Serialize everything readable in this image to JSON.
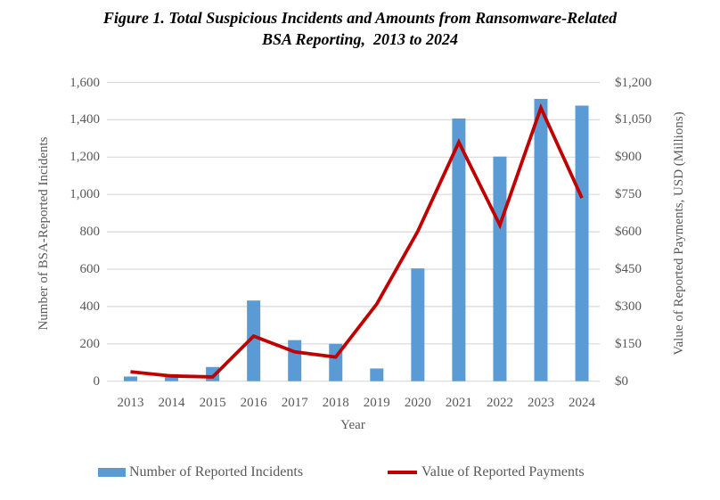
{
  "figure_title": {
    "line1": "Figure 1. Total Suspicious Incidents and Amounts from Ransomware-Related",
    "line2": "BSA Reporting,  2013 to 2024"
  },
  "chart_data": {
    "type": "combo bar+line, dual axis",
    "categories": [
      "2013",
      "2014",
      "2015",
      "2016",
      "2017",
      "2018",
      "2019",
      "2020",
      "2021",
      "2022",
      "2023",
      "2024"
    ],
    "series": [
      {
        "name": "Number of Reported Incidents",
        "type": "bar",
        "axis": "left",
        "color": "#5B9BD5",
        "values": [
          25,
          38,
          76,
          432,
          220,
          200,
          68,
          604,
          1407,
          1203,
          1512,
          1476
        ]
      },
      {
        "name": "Value of Reported Payments",
        "type": "line",
        "axis": "right",
        "color": "#C00000",
        "values": [
          38,
          21,
          17,
          181,
          118,
          97,
          310,
          602,
          960,
          627,
          1098,
          736
        ]
      }
    ],
    "left_axis": {
      "title": "Number of BSA-Reported Incidents",
      "min": 0,
      "max": 1600,
      "tick_values": [
        0,
        200,
        400,
        600,
        800,
        1000,
        1200,
        1400,
        1600
      ],
      "tick_labels": [
        "0",
        "200",
        "400",
        "600",
        "800",
        "1,000",
        "1,200",
        "1,400",
        "1,600"
      ]
    },
    "right_axis": {
      "title": "Value of Reported Payments, USD (Millions)",
      "min": 0,
      "max": 1200,
      "tick_values": [
        0,
        150,
        300,
        450,
        600,
        750,
        900,
        1050,
        1200
      ],
      "tick_labels": [
        "$0",
        "$150",
        "$300",
        "$450",
        "$600",
        "$750",
        "$900",
        "$1,050",
        "$1,200"
      ]
    },
    "x_axis": {
      "title": "Year"
    },
    "grid": true,
    "legend_position": "bottom",
    "colors": {
      "grid": "#D9D9D9",
      "axis_text": "#595959",
      "title_text": "#000000"
    }
  }
}
